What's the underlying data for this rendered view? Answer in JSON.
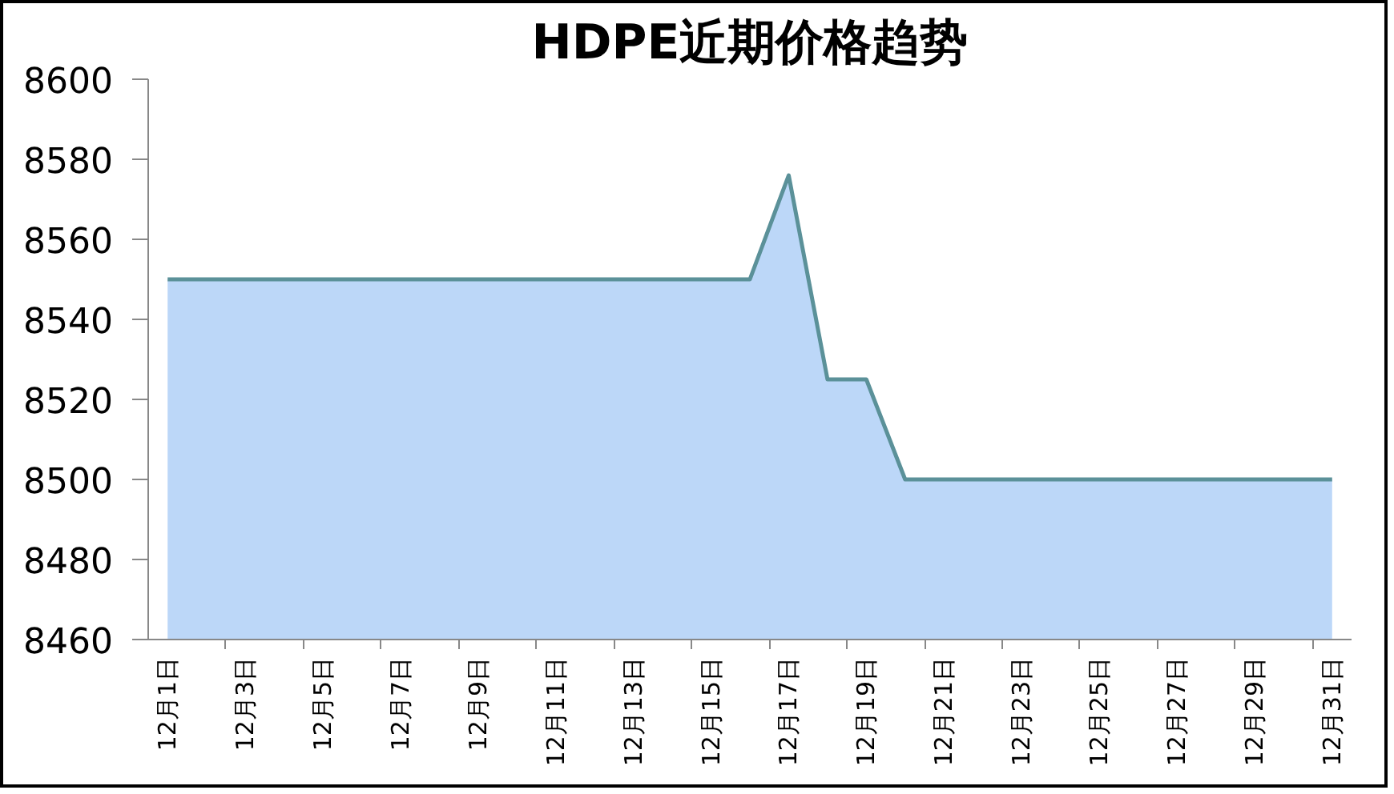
{
  "chart_data": {
    "type": "area",
    "title": "HDPE近期价格趋势",
    "categories": [
      "12月1日",
      null,
      "12月3日",
      null,
      "12月5日",
      null,
      "12月7日",
      null,
      "12月9日",
      null,
      "12月11日",
      null,
      "12月13日",
      null,
      "12月15日",
      null,
      "12月17日",
      null,
      "12月19日",
      null,
      "12月21日",
      null,
      "12月23日",
      null,
      "12月25日",
      null,
      "12月27日",
      null,
      "12月29日",
      null,
      "12月31日"
    ],
    "series": [
      {
        "color": "#5b9199",
        "values": [
          8550,
          8550,
          8550,
          8550,
          8550,
          8550,
          8550,
          8550,
          8550,
          8550,
          8550,
          8550,
          8550,
          8550,
          8550,
          8550,
          8576,
          8525,
          8525,
          8500,
          8500,
          8500,
          8500,
          8500,
          8500,
          8500,
          8500,
          8500,
          8500,
          8500,
          8500
        ]
      }
    ],
    "ylim": [
      8460,
      8600
    ],
    "yticks": [
      8460,
      8480,
      8500,
      8520,
      8540,
      8560,
      8580,
      8600
    ],
    "grid": false
  }
}
